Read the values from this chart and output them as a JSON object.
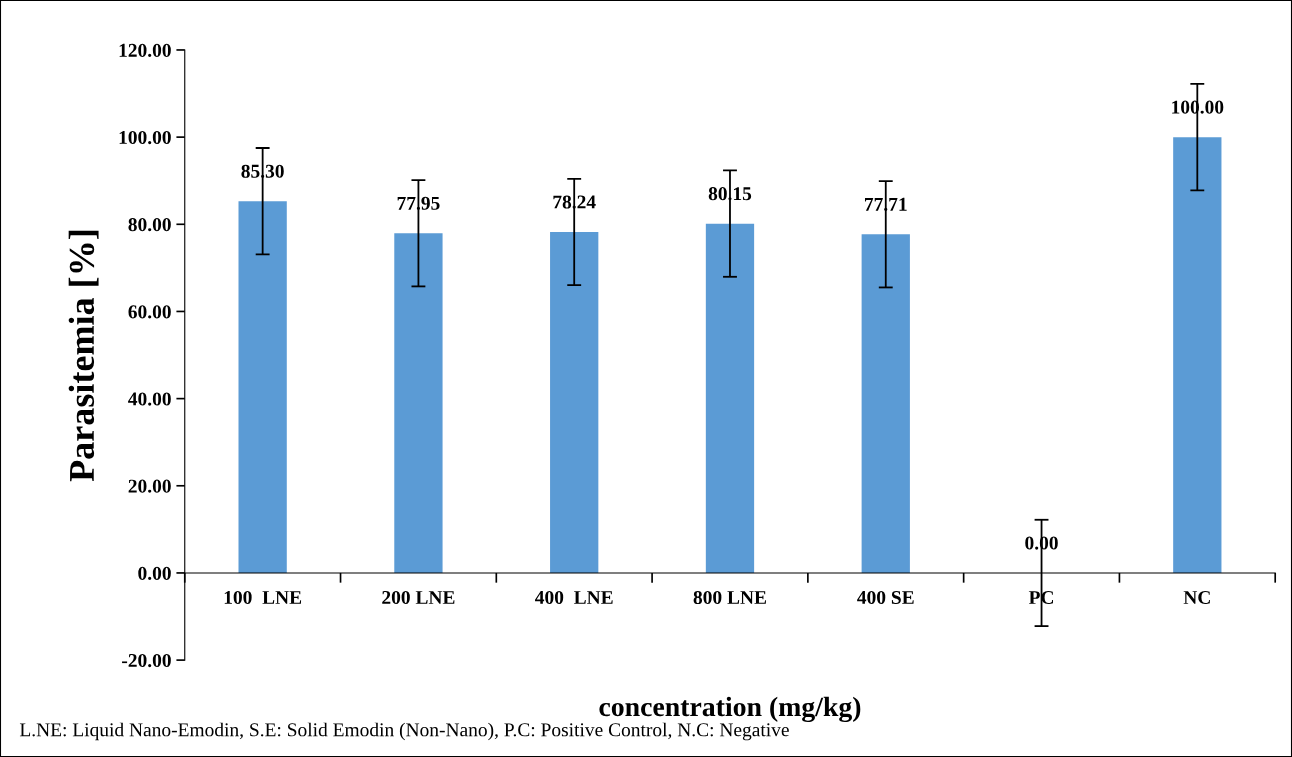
{
  "chart_data": {
    "type": "bar",
    "categories": [
      "100  LNE",
      "200 LNE",
      "400  LNE",
      "800 LNE",
      "400 SE",
      "PC",
      "NC"
    ],
    "values": [
      85.3,
      77.95,
      78.24,
      80.15,
      77.71,
      0.0,
      100.0
    ],
    "value_labels": [
      "85.30",
      "77.95",
      "78.24",
      "80.15",
      "77.71",
      "0.00",
      "100.00"
    ],
    "errors": [
      12.2,
      12.2,
      12.2,
      12.2,
      12.2,
      12.2,
      12.2
    ],
    "color": "#5b9bd5",
    "xlabel": "concentration (mg/kg)",
    "ylabel": "Parasitemia [%]",
    "ylim": [
      -20,
      120
    ],
    "yticks": [
      {
        "value": -20,
        "label": "-20.00"
      },
      {
        "value": 0,
        "label": "0.00"
      },
      {
        "value": 20,
        "label": "20.00"
      },
      {
        "value": 40,
        "label": "40.00"
      },
      {
        "value": 60,
        "label": "60.00"
      },
      {
        "value": 80,
        "label": "80.00"
      },
      {
        "value": 100,
        "label": "100.00"
      },
      {
        "value": 120,
        "label": "120.00"
      }
    ],
    "grid": false,
    "legend": false,
    "annotations": [
      "L.NE: Liquid Nano-Emodin, S.E: Solid Emodin (Non-Nano), P.C: Positive Control, N.C: Negative"
    ]
  }
}
